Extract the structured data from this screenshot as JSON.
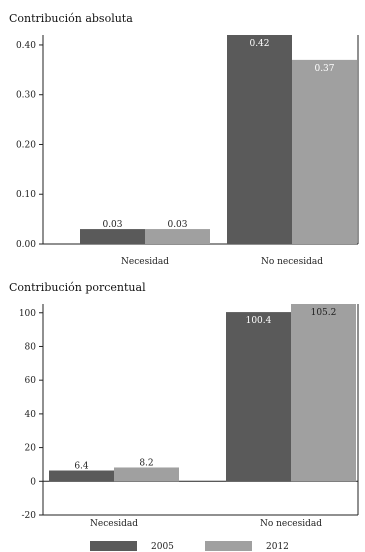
{
  "chart_data": [
    {
      "type": "bar",
      "title": "Contribución absoluta",
      "categories": [
        "Necesidad",
        "No necesidad"
      ],
      "ylim": [
        0,
        0.42
      ],
      "yticks": [
        "0.00",
        "0.10",
        "0.20",
        "0.30",
        "0.40"
      ],
      "ytick_values": [
        0,
        0.1,
        0.2,
        0.3,
        0.4
      ],
      "series": [
        {
          "name": "2005",
          "values": [
            0.03,
            0.42
          ],
          "labels": [
            "0.03",
            "0.42"
          ]
        },
        {
          "name": "2012",
          "values": [
            0.03,
            0.37
          ],
          "labels": [
            "0.03",
            "0.37"
          ]
        }
      ]
    },
    {
      "type": "bar",
      "title": "Contribución porcentual",
      "categories": [
        "Necesidad",
        "No necesidad"
      ],
      "ylim": [
        -20,
        105.2
      ],
      "yticks": [
        "-20",
        "0",
        "20",
        "40",
        "60",
        "80",
        "100"
      ],
      "ytick_values": [
        -20,
        0,
        20,
        40,
        60,
        80,
        100
      ],
      "series": [
        {
          "name": "2005",
          "values": [
            6.4,
            100.4
          ],
          "labels": [
            "6.4",
            "100.4"
          ]
        },
        {
          "name": "2012",
          "values": [
            8.2,
            105.2
          ],
          "labels": [
            "8.2",
            "105.2"
          ]
        }
      ]
    }
  ],
  "legend": [
    {
      "label": "2005",
      "color": "#5a5a5a"
    },
    {
      "label": "2012",
      "color": "#a0a0a0"
    }
  ],
  "colors": {
    "series_2005": "#5a5a5a",
    "series_2012": "#a0a0a0",
    "axis": "#222222"
  }
}
